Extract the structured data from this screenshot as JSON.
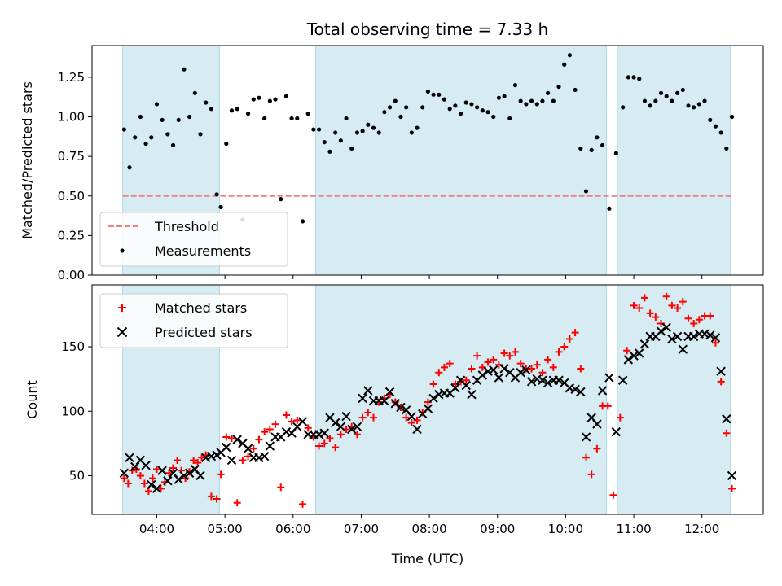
{
  "figure": {
    "title": "Total observing time = 7.33 h",
    "xlabel": "Time (UTC)"
  },
  "chart_data": [
    {
      "type": "scatter",
      "panel": "top",
      "title": "Total observing time = 7.33 h",
      "xlabel": "",
      "ylabel": "Matched/Predicted stars",
      "x_unit": "hours UTC",
      "xlim": [
        3.05,
        12.9
      ],
      "ylim": [
        0.0,
        1.45
      ],
      "xticks": [
        4,
        5,
        6,
        7,
        8,
        9,
        10,
        11,
        12
      ],
      "xtick_labels": [
        "04:00",
        "05:00",
        "06:00",
        "07:00",
        "08:00",
        "09:00",
        "10:00",
        "11:00",
        "12:00"
      ],
      "yticks": [
        0.0,
        0.25,
        0.5,
        0.75,
        1.0,
        1.25
      ],
      "ytick_labels": [
        "0.00",
        "0.25",
        "0.50",
        "0.75",
        "1.00",
        "1.25"
      ],
      "observing_windows": [
        [
          3.5,
          4.92
        ],
        [
          6.33,
          10.6
        ],
        [
          10.76,
          12.42
        ]
      ],
      "threshold": {
        "name": "Threshold",
        "value": 0.5,
        "x_range": [
          3.5,
          12.42
        ],
        "color": "#f08080"
      },
      "legend": {
        "location": "lower left",
        "entries": [
          "Threshold",
          "Measurements"
        ]
      },
      "series": [
        {
          "name": "Measurements",
          "color": "#000000",
          "marker": "dot",
          "x": [
            3.52,
            3.6,
            3.68,
            3.76,
            3.84,
            3.92,
            4.0,
            4.08,
            4.16,
            4.24,
            4.32,
            4.4,
            4.48,
            4.56,
            4.64,
            4.72,
            4.8,
            4.88,
            4.94,
            5.02,
            5.1,
            5.18,
            5.26,
            5.34,
            5.42,
            5.5,
            5.58,
            5.66,
            5.74,
            5.82,
            5.9,
            5.98,
            6.06,
            6.14,
            6.22,
            6.3,
            6.38,
            6.46,
            6.54,
            6.62,
            6.7,
            6.78,
            6.86,
            6.94,
            7.02,
            7.1,
            7.18,
            7.26,
            7.34,
            7.42,
            7.5,
            7.58,
            7.66,
            7.74,
            7.82,
            7.9,
            7.98,
            8.06,
            8.14,
            8.22,
            8.3,
            8.38,
            8.46,
            8.54,
            8.62,
            8.7,
            8.78,
            8.86,
            8.94,
            9.02,
            9.1,
            9.18,
            9.26,
            9.34,
            9.42,
            9.5,
            9.58,
            9.66,
            9.74,
            9.82,
            9.9,
            9.98,
            10.06,
            10.14,
            10.22,
            10.3,
            10.38,
            10.46,
            10.54,
            10.64,
            10.74,
            10.84,
            10.92,
            11.0,
            11.08,
            11.16,
            11.24,
            11.32,
            11.4,
            11.48,
            11.56,
            11.64,
            11.72,
            11.8,
            11.88,
            11.96,
            12.04,
            12.12,
            12.2,
            12.28,
            12.36,
            12.44
          ],
          "y": [
            0.92,
            0.68,
            0.87,
            1.0,
            0.83,
            0.87,
            1.08,
            0.98,
            0.89,
            0.82,
            0.98,
            1.3,
            1.0,
            1.15,
            0.89,
            1.09,
            1.05,
            0.51,
            0.43,
            0.83,
            1.04,
            1.05,
            0.35,
            1.02,
            1.11,
            1.12,
            0.99,
            1.1,
            1.11,
            0.48,
            1.13,
            0.99,
            0.99,
            0.34,
            1.02,
            0.92,
            0.92,
            0.84,
            0.78,
            0.9,
            0.85,
            0.99,
            0.8,
            0.9,
            0.91,
            0.95,
            0.93,
            0.9,
            1.03,
            1.06,
            1.1,
            1.0,
            1.06,
            0.9,
            0.93,
            1.06,
            1.16,
            1.14,
            1.14,
            1.11,
            1.05,
            1.07,
            1.02,
            1.09,
            1.08,
            1.06,
            1.04,
            1.03,
            1.0,
            1.12,
            1.13,
            0.99,
            1.2,
            1.1,
            1.08,
            1.1,
            1.08,
            1.1,
            1.15,
            1.1,
            1.19,
            1.33,
            1.39,
            1.17,
            0.8,
            0.53,
            0.79,
            0.87,
            0.82,
            0.42,
            0.77,
            1.06,
            1.25,
            1.25,
            1.24,
            1.1,
            1.07,
            1.1,
            1.15,
            1.13,
            1.1,
            1.15,
            1.17,
            1.07,
            1.06,
            1.08,
            1.1,
            0.98,
            0.94,
            0.9,
            0.8,
            1.0
          ]
        }
      ]
    },
    {
      "type": "scatter",
      "panel": "bottom",
      "title": "",
      "xlabel": "Time (UTC)",
      "ylabel": "Count",
      "x_unit": "hours UTC",
      "xlim": [
        3.05,
        12.9
      ],
      "ylim": [
        20,
        198
      ],
      "xticks": [
        4,
        5,
        6,
        7,
        8,
        9,
        10,
        11,
        12
      ],
      "xtick_labels": [
        "04:00",
        "05:00",
        "06:00",
        "07:00",
        "08:00",
        "09:00",
        "10:00",
        "11:00",
        "12:00"
      ],
      "yticks": [
        50,
        100,
        150
      ],
      "ytick_labels": [
        "50",
        "100",
        "150"
      ],
      "observing_windows": [
        [
          3.5,
          4.92
        ],
        [
          6.33,
          10.6
        ],
        [
          10.76,
          12.42
        ]
      ],
      "legend": {
        "location": "upper left",
        "entries": [
          "Matched stars",
          "Predicted stars"
        ]
      },
      "series": [
        {
          "name": "Matched stars",
          "color": "#ff0000",
          "marker": "plus",
          "x": [
            3.52,
            3.58,
            3.64,
            3.7,
            3.76,
            3.82,
            3.88,
            3.94,
            4.0,
            4.06,
            4.12,
            4.18,
            4.24,
            4.3,
            4.36,
            4.42,
            4.48,
            4.54,
            4.6,
            4.66,
            4.72,
            4.8,
            4.88,
            4.94,
            5.02,
            5.1,
            5.18,
            5.26,
            5.34,
            5.42,
            5.5,
            5.58,
            5.66,
            5.74,
            5.82,
            5.9,
            5.98,
            6.06,
            6.14,
            6.22,
            6.3,
            6.38,
            6.46,
            6.54,
            6.62,
            6.7,
            6.78,
            6.86,
            6.94,
            7.02,
            7.1,
            7.18,
            7.26,
            7.34,
            7.42,
            7.5,
            7.58,
            7.66,
            7.74,
            7.82,
            7.9,
            7.98,
            8.06,
            8.14,
            8.22,
            8.3,
            8.38,
            8.46,
            8.54,
            8.62,
            8.7,
            8.78,
            8.86,
            8.94,
            9.02,
            9.1,
            9.18,
            9.26,
            9.34,
            9.42,
            9.5,
            9.58,
            9.66,
            9.74,
            9.82,
            9.9,
            9.98,
            10.06,
            10.14,
            10.22,
            10.3,
            10.38,
            10.46,
            10.54,
            10.62,
            10.7,
            10.8,
            10.9,
            11.0,
            11.08,
            11.16,
            11.24,
            11.32,
            11.4,
            11.48,
            11.56,
            11.64,
            11.72,
            11.8,
            11.88,
            11.96,
            12.04,
            12.12,
            12.2,
            12.28,
            12.36,
            12.44
          ],
          "y": [
            48,
            44,
            54,
            55,
            50,
            44,
            38,
            48,
            55,
            40,
            45,
            52,
            56,
            62,
            54,
            48,
            53,
            62,
            60,
            64,
            66,
            34,
            32,
            51,
            80,
            79,
            29,
            62,
            65,
            71,
            78,
            84,
            86,
            90,
            41,
            97,
            92,
            93,
            28,
            87,
            80,
            73,
            75,
            79,
            72,
            82,
            86,
            88,
            82,
            95,
            99,
            95,
            107,
            110,
            113,
            107,
            103,
            95,
            91,
            93,
            99,
            107,
            121,
            130,
            134,
            137,
            121,
            123,
            124,
            133,
            143,
            134,
            138,
            140,
            136,
            145,
            143,
            146,
            137,
            133,
            133,
            136,
            130,
            140,
            134,
            146,
            150,
            156,
            161,
            133,
            64,
            51,
            71,
            104,
            104,
            35,
            95,
            147,
            182,
            180,
            188,
            176,
            173,
            168,
            189,
            182,
            180,
            185,
            172,
            168,
            171,
            174,
            174,
            153,
            123,
            83,
            40
          ]
        },
        {
          "name": "Predicted stars",
          "color": "#000000",
          "marker": "x",
          "x": [
            3.52,
            3.6,
            3.68,
            3.76,
            3.84,
            3.92,
            4.0,
            4.08,
            4.16,
            4.24,
            4.32,
            4.4,
            4.48,
            4.56,
            4.64,
            4.72,
            4.8,
            4.88,
            4.94,
            5.02,
            5.1,
            5.18,
            5.26,
            5.34,
            5.42,
            5.5,
            5.58,
            5.66,
            5.74,
            5.82,
            5.9,
            5.98,
            6.06,
            6.14,
            6.22,
            6.3,
            6.38,
            6.46,
            6.54,
            6.62,
            6.7,
            6.78,
            6.86,
            6.94,
            7.02,
            7.1,
            7.18,
            7.26,
            7.34,
            7.42,
            7.5,
            7.58,
            7.66,
            7.74,
            7.82,
            7.9,
            7.98,
            8.06,
            8.14,
            8.22,
            8.3,
            8.38,
            8.46,
            8.54,
            8.62,
            8.7,
            8.78,
            8.86,
            8.94,
            9.02,
            9.1,
            9.18,
            9.26,
            9.34,
            9.42,
            9.5,
            9.58,
            9.66,
            9.74,
            9.82,
            9.9,
            9.98,
            10.06,
            10.14,
            10.22,
            10.3,
            10.38,
            10.46,
            10.54,
            10.64,
            10.74,
            10.84,
            10.92,
            11.0,
            11.08,
            11.16,
            11.24,
            11.32,
            11.4,
            11.48,
            11.56,
            11.64,
            11.72,
            11.8,
            11.88,
            11.96,
            12.04,
            12.12,
            12.2,
            12.28,
            12.36,
            12.44
          ],
          "y": [
            52,
            64,
            57,
            62,
            58,
            43,
            40,
            54,
            46,
            52,
            47,
            50,
            52,
            55,
            50,
            64,
            65,
            66,
            68,
            72,
            62,
            78,
            75,
            71,
            64,
            64,
            65,
            73,
            80,
            80,
            84,
            83,
            88,
            92,
            82,
            82,
            82,
            83,
            95,
            91,
            88,
            96,
            86,
            88,
            110,
            116,
            108,
            108,
            108,
            115,
            106,
            103,
            101,
            96,
            86,
            98,
            102,
            110,
            113,
            114,
            114,
            118,
            124,
            120,
            113,
            124,
            128,
            131,
            132,
            126,
            133,
            130,
            126,
            130,
            132,
            123,
            125,
            124,
            122,
            124,
            124,
            122,
            118,
            117,
            115,
            80,
            95,
            90,
            116,
            126,
            84,
            124,
            140,
            143,
            145,
            152,
            158,
            158,
            162,
            165,
            156,
            158,
            148,
            158,
            158,
            160,
            160,
            159,
            157,
            131,
            94,
            50
          ]
        }
      ]
    }
  ]
}
